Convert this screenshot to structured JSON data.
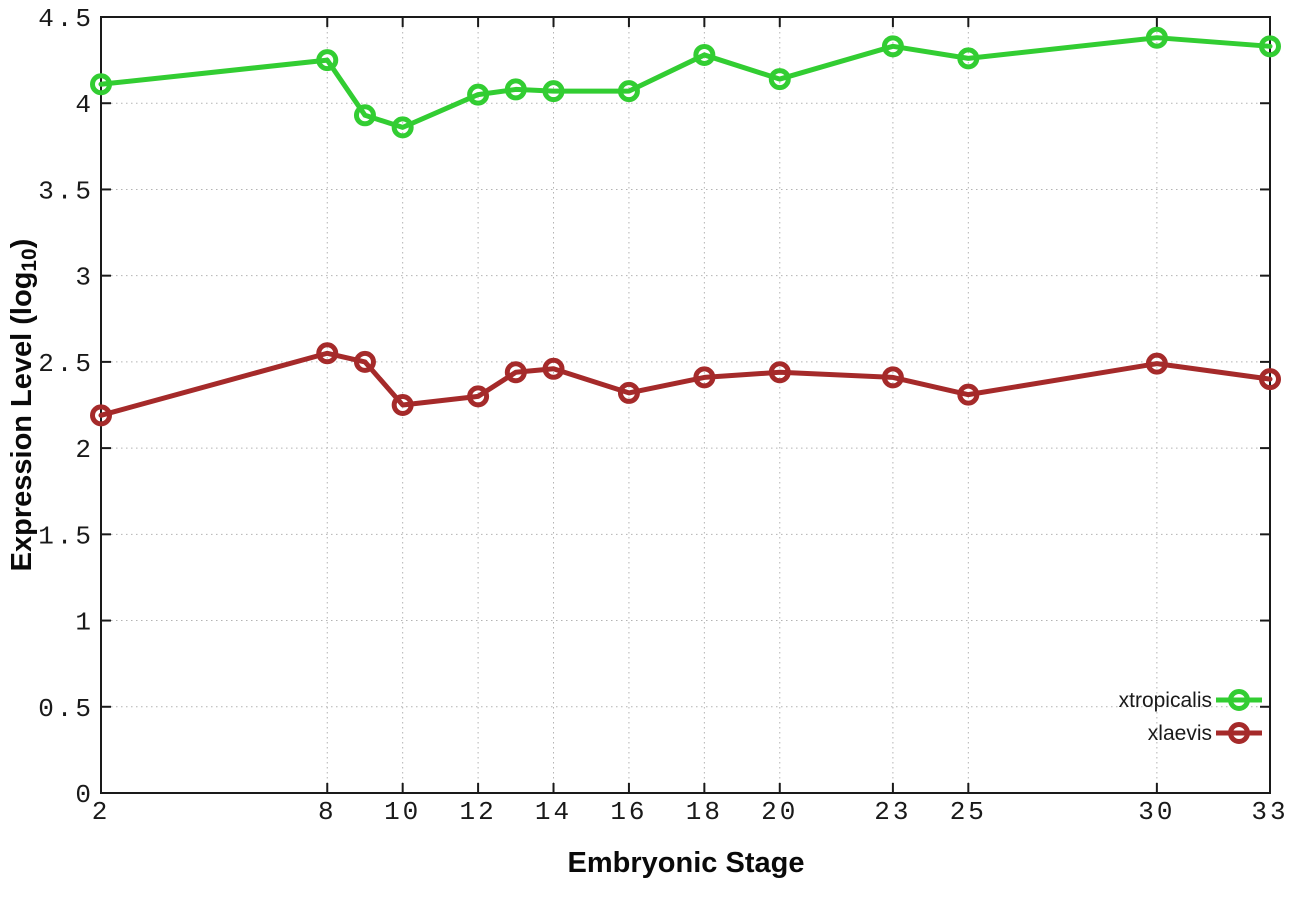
{
  "chart_data": {
    "type": "line",
    "title": "",
    "xlabel": "Embryonic Stage",
    "ylabel": "Expression Level (log10)",
    "ylabel_prefix": "Expression Level (log",
    "ylabel_sub": "10",
    "ylabel_suffix": ")",
    "x": [
      2,
      8,
      9,
      10,
      12,
      13,
      14,
      16,
      18,
      20,
      23,
      25,
      30,
      33
    ],
    "series": [
      {
        "name": "xtropicalis",
        "color": "#32cd32",
        "values": [
          4.11,
          4.25,
          3.93,
          3.86,
          4.05,
          4.08,
          4.07,
          4.07,
          4.28,
          4.14,
          4.33,
          4.26,
          4.38,
          4.33
        ]
      },
      {
        "name": "xlaevis",
        "color": "#a52a2a",
        "values": [
          2.19,
          2.55,
          2.5,
          2.25,
          2.3,
          2.44,
          2.46,
          2.32,
          2.41,
          2.44,
          2.41,
          2.31,
          2.49,
          2.4
        ]
      }
    ],
    "xticks": [
      2,
      8,
      10,
      12,
      14,
      16,
      18,
      20,
      23,
      25,
      30,
      33
    ],
    "yticks": [
      0,
      0.5,
      1,
      1.5,
      2,
      2.5,
      3,
      3.5,
      4,
      4.5
    ],
    "xtick_labels": [
      "2",
      "8",
      "10",
      "12",
      "14",
      "16",
      "18",
      "20",
      "23",
      "25",
      "30",
      "33"
    ],
    "ytick_labels": [
      "0",
      "0.5",
      "1",
      "1.5",
      "2",
      "2.5",
      "3",
      "3.5",
      "4",
      "4.5"
    ],
    "xlim": [
      2,
      33
    ],
    "ylim": [
      0,
      4.5
    ],
    "grid": true,
    "legend_position": "bottom-right",
    "marker": "open-circle"
  },
  "colors": {
    "background": "#ffffff",
    "axis": "#1a1a1a",
    "tick_label": "#1a1a1a",
    "grid": "#b3b3b3",
    "xtropicalis": "#32cd32",
    "xlaevis": "#a52a2a"
  }
}
